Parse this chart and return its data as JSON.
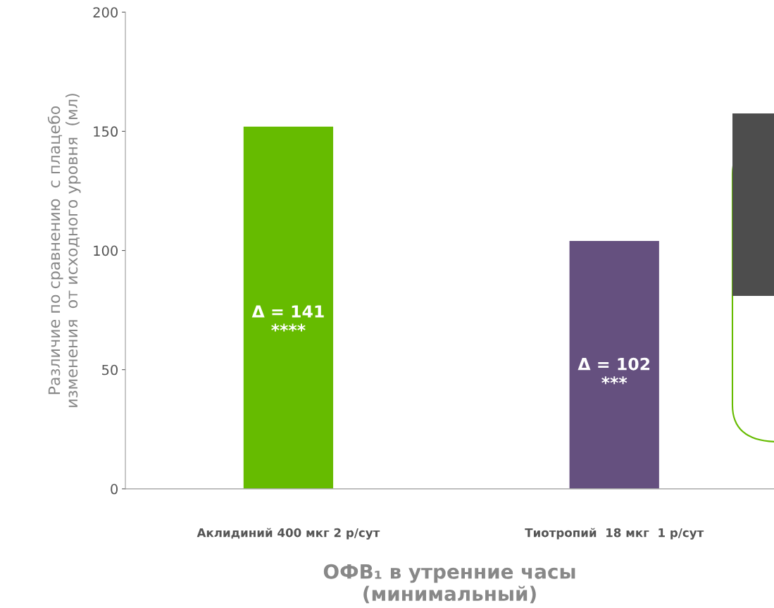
{
  "chart_data": {
    "type": "bar",
    "categories": [
      "Аклидиний 400 мкг 2 р/сут",
      "Тиотропий  18 мкг  1 р/сут"
    ],
    "values": [
      152,
      104
    ],
    "colors": [
      "#66bb00",
      "#65507f"
    ],
    "xlabel": "ОФВ₁ в утренние часы\n(минимальный)",
    "ylabel": "Различие по сравнению  с плацебо\nизменения  от исходного уровня  (мл)",
    "ylim": [
      0,
      200
    ],
    "yticks": [
      0,
      50,
      100,
      150,
      200
    ],
    "grid": false,
    "legend": false,
    "annotations": [
      "Δ = 141\n****",
      "Δ = 102\n***"
    ]
  }
}
